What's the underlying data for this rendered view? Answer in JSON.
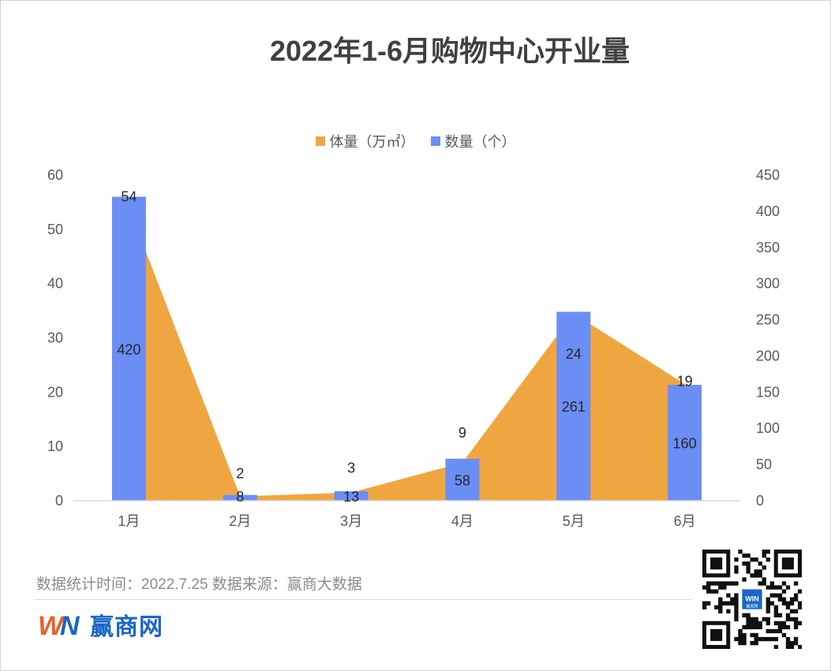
{
  "title": "2022年1-6月购物中心开业量",
  "legend": [
    {
      "label": "体量（万㎡）",
      "color": "#F0A640"
    },
    {
      "label": "数量（个）",
      "color": "#6B8EF5"
    }
  ],
  "footer": {
    "note": "数据统计时间：2022.7.25  数据来源：赢商大数据",
    "brand": "赢商网",
    "logo_text": "WIN",
    "qr_label": "赢商网"
  },
  "chart_data": {
    "type": "bar",
    "categories": [
      "1月",
      "2月",
      "3月",
      "4月",
      "5月",
      "6月"
    ],
    "series": [
      {
        "name": "体量（万㎡）",
        "type": "area",
        "axis": "left",
        "color": "#F0A640",
        "values": [
          54,
          2,
          3,
          9,
          24,
          19
        ]
      },
      {
        "name": "数量（个）",
        "type": "bar",
        "axis": "right",
        "color": "#6B8EF5",
        "values": [
          420,
          8,
          13,
          58,
          261,
          160
        ]
      }
    ],
    "left_axis": {
      "min": 0,
      "max": 60,
      "ticks": [
        0,
        10,
        20,
        30,
        40,
        50,
        60
      ]
    },
    "right_axis": {
      "min": 0,
      "max": 450,
      "ticks": [
        0,
        50,
        100,
        150,
        200,
        250,
        300,
        350,
        400,
        450
      ]
    },
    "area_shape_values": [
      54,
      0.8,
      1.5,
      7,
      34.5,
      21.5
    ],
    "area_label_values": [
      56,
      5,
      6,
      12.5,
      27,
      22
    ],
    "legend_position": "top",
    "grid": false
  }
}
